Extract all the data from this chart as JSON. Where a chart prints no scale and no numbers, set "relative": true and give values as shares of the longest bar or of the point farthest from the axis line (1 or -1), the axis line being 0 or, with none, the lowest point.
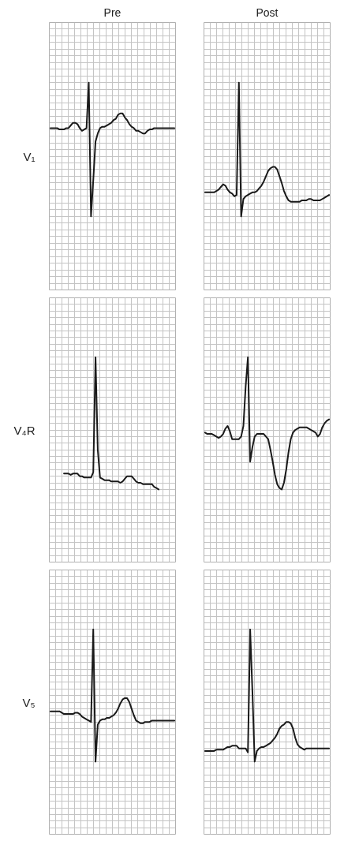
{
  "chart_data": [
    {
      "type": "line",
      "title": "Pre",
      "ylabel": "V₁",
      "relative": true,
      "grid": true,
      "tick_labels": false,
      "line_style": "solid",
      "marker": "none",
      "categories": [
        null,
        null,
        null,
        null,
        null,
        null,
        null,
        null,
        null,
        null,
        null,
        null,
        null,
        null,
        null,
        null,
        null,
        null,
        null,
        null,
        null,
        null,
        null,
        null,
        null,
        null,
        null,
        null,
        null,
        null,
        null,
        null,
        null,
        null,
        null,
        null,
        null,
        null,
        null,
        null,
        null,
        null,
        null,
        null,
        null,
        null,
        null,
        null,
        null,
        null,
        null,
        null,
        null,
        null,
        null,
        null
      ],
      "series": [
        {
          "color": "#1a1a1a",
          "values": [
            0.66,
            0.66,
            0.66,
            0.66,
            0.65,
            0.65,
            0.65,
            0.66,
            0.66,
            0.68,
            0.7,
            0.7,
            0.69,
            0.66,
            0.64,
            0.65,
            0.66,
            1,
            0,
            0.27,
            0.56,
            0.62,
            0.66,
            0.67,
            0.67,
            0.68,
            0.69,
            0.7,
            0.72,
            0.73,
            0.76,
            0.77,
            0.77,
            0.74,
            0.72,
            0.69,
            0.67,
            0.66,
            0.64,
            0.64,
            0.63,
            0.62,
            0.62,
            0.64,
            0.65,
            0.65,
            0.66,
            0.66,
            0.66,
            0.66,
            0.66,
            0.66,
            0.66,
            0.66,
            0.66,
            0.66
          ]
        }
      ]
    },
    {
      "type": "line",
      "title": "Post",
      "relative": true,
      "grid": true,
      "tick_labels": false,
      "line_style": "solid",
      "marker": "none",
      "categories": [
        null,
        null,
        null,
        null,
        null,
        null,
        null,
        null,
        null,
        null,
        null,
        null,
        null,
        null,
        null,
        null,
        null,
        null,
        null,
        null,
        null,
        null,
        null,
        null,
        null,
        null,
        null,
        null,
        null,
        null,
        null,
        null,
        null,
        null,
        null,
        null,
        null,
        null,
        null,
        null,
        null,
        null,
        null,
        null,
        null,
        null,
        null,
        null,
        null,
        null,
        null,
        null,
        null,
        null,
        null,
        null
      ],
      "series": [
        {
          "color": "#1a1a1a",
          "values": [
            0.18,
            0.18,
            0.18,
            0.18,
            0.18,
            0.19,
            0.2,
            0.22,
            0.24,
            0.23,
            0.2,
            0.18,
            0.17,
            0.15,
            0.16,
            1,
            0,
            0.13,
            0.15,
            0.16,
            0.17,
            0.18,
            0.18,
            0.19,
            0.21,
            0.23,
            0.26,
            0.3,
            0.34,
            0.36,
            0.37,
            0.37,
            0.35,
            0.3,
            0.25,
            0.19,
            0.15,
            0.12,
            0.11,
            0.11,
            0.11,
            0.11,
            0.11,
            0.12,
            0.12,
            0.12,
            0.13,
            0.13,
            0.12,
            0.12,
            0.12,
            0.12,
            0.13,
            0.14,
            0.15,
            0.16
          ]
        }
      ]
    },
    {
      "type": "line",
      "ylabel": "V₄R",
      "relative": true,
      "grid": true,
      "tick_labels": false,
      "line_style": "solid",
      "marker": "none",
      "categories": [
        null,
        null,
        null,
        null,
        null,
        null,
        null,
        null,
        null,
        null,
        null,
        null,
        null,
        null,
        null,
        null,
        null,
        null,
        null,
        null,
        null,
        null,
        null,
        null,
        null,
        null,
        null,
        null,
        null,
        null,
        null,
        null,
        null,
        null,
        null,
        null,
        null,
        null,
        null,
        null,
        null,
        null,
        null,
        null,
        null,
        null,
        null,
        null,
        null,
        null,
        null,
        null,
        null,
        null,
        null,
        null
      ],
      "series": [
        {
          "color": "#1a1a1a",
          "values": [
            null,
            null,
            null,
            null,
            null,
            null,
            0.12,
            0.12,
            0.12,
            0.11,
            0.12,
            0.12,
            0.12,
            0.1,
            0.1,
            0.09,
            0.09,
            0.09,
            0.09,
            0.13,
            1,
            0.3,
            0.09,
            0.08,
            0.07,
            0.07,
            0.07,
            0.06,
            0.06,
            0.06,
            0.06,
            0.05,
            0.06,
            0.08,
            0.1,
            0.1,
            0.1,
            0.08,
            0.06,
            0.05,
            0.05,
            0.04,
            0.04,
            0.04,
            0.04,
            0.04,
            0.02,
            0.01,
            0,
            null,
            null,
            null,
            null,
            null,
            null,
            null
          ]
        }
      ]
    },
    {
      "type": "line",
      "relative": true,
      "grid": true,
      "tick_labels": false,
      "line_style": "solid",
      "marker": "none",
      "categories": [
        null,
        null,
        null,
        null,
        null,
        null,
        null,
        null,
        null,
        null,
        null,
        null,
        null,
        null,
        null,
        null,
        null,
        null,
        null,
        null,
        null,
        null,
        null,
        null,
        null,
        null,
        null,
        null,
        null,
        null,
        null,
        null,
        null,
        null,
        null,
        null,
        null,
        null,
        null,
        null,
        null,
        null,
        null,
        null,
        null,
        null,
        null,
        null,
        null,
        null,
        null,
        null,
        null,
        null,
        null,
        null
      ],
      "series": [
        {
          "color": "#1a1a1a",
          "values": [
            0.43,
            0.42,
            0.42,
            0.42,
            0.41,
            0.4,
            0.39,
            0.4,
            0.42,
            0.46,
            0.48,
            0.44,
            0.38,
            0.38,
            0.38,
            0.38,
            0.4,
            0.48,
            0.78,
            1,
            0.21,
            0.32,
            0.4,
            0.42,
            0.42,
            0.42,
            0.42,
            0.4,
            0.38,
            0.3,
            0.21,
            0.11,
            0.04,
            0.01,
            0,
            0.05,
            0.15,
            0.28,
            0.38,
            0.43,
            0.45,
            0.46,
            0.47,
            0.47,
            0.47,
            0.47,
            0.46,
            0.45,
            0.44,
            0.43,
            0.4,
            0.42,
            0.47,
            0.5,
            0.52,
            0.53
          ]
        }
      ]
    },
    {
      "type": "line",
      "ylabel": "V₅",
      "relative": true,
      "grid": true,
      "tick_labels": false,
      "line_style": "solid",
      "marker": "none",
      "categories": [
        null,
        null,
        null,
        null,
        null,
        null,
        null,
        null,
        null,
        null,
        null,
        null,
        null,
        null,
        null,
        null,
        null,
        null,
        null,
        null,
        null,
        null,
        null,
        null,
        null,
        null,
        null,
        null,
        null,
        null,
        null,
        null,
        null,
        null,
        null,
        null,
        null,
        null,
        null,
        null,
        null,
        null,
        null,
        null,
        null,
        null,
        null,
        null,
        null,
        null,
        null,
        null,
        null,
        null,
        null,
        null
      ],
      "series": [
        {
          "color": "#1a1a1a",
          "values": [
            0.38,
            0.38,
            0.38,
            0.38,
            0.38,
            0.37,
            0.36,
            0.36,
            0.36,
            0.36,
            0.36,
            0.37,
            0.37,
            0.36,
            0.34,
            0.33,
            0.32,
            0.31,
            0.3,
            1,
            0,
            0.28,
            0.31,
            0.32,
            0.32,
            0.33,
            0.33,
            0.34,
            0.35,
            0.37,
            0.4,
            0.44,
            0.47,
            0.48,
            0.48,
            0.45,
            0.4,
            0.35,
            0.31,
            0.3,
            0.29,
            0.29,
            0.3,
            0.3,
            0.3,
            0.31,
            0.31,
            0.31,
            0.31,
            0.31,
            0.31,
            0.31,
            0.31,
            0.31,
            0.31,
            0.31
          ]
        }
      ]
    },
    {
      "type": "line",
      "relative": true,
      "grid": true,
      "tick_labels": false,
      "line_style": "solid",
      "marker": "none",
      "categories": [
        null,
        null,
        null,
        null,
        null,
        null,
        null,
        null,
        null,
        null,
        null,
        null,
        null,
        null,
        null,
        null,
        null,
        null,
        null,
        null,
        null,
        null,
        null,
        null,
        null,
        null,
        null,
        null,
        null,
        null,
        null,
        null,
        null,
        null,
        null,
        null,
        null,
        null,
        null,
        null,
        null,
        null,
        null,
        null,
        null,
        null,
        null,
        null,
        null,
        null,
        null,
        null,
        null,
        null,
        null,
        null
      ],
      "series": [
        {
          "color": "#1a1a1a",
          "values": [
            0.08,
            0.08,
            0.08,
            0.08,
            0.08,
            0.09,
            0.09,
            0.09,
            0.09,
            0.1,
            0.11,
            0.11,
            0.12,
            0.12,
            0.12,
            0.1,
            0.1,
            0.1,
            0.1,
            0.07,
            1,
            0.53,
            0,
            0.08,
            0.1,
            0.11,
            0.11,
            0.12,
            0.13,
            0.14,
            0.16,
            0.18,
            0.21,
            0.25,
            0.27,
            0.28,
            0.3,
            0.3,
            0.29,
            0.25,
            0.18,
            0.13,
            0.11,
            0.1,
            0.09,
            0.1,
            0.1,
            0.1,
            0.1,
            0.1,
            0.1,
            0.1,
            0.1,
            0.1,
            0.1,
            0.1
          ]
        }
      ]
    }
  ]
}
